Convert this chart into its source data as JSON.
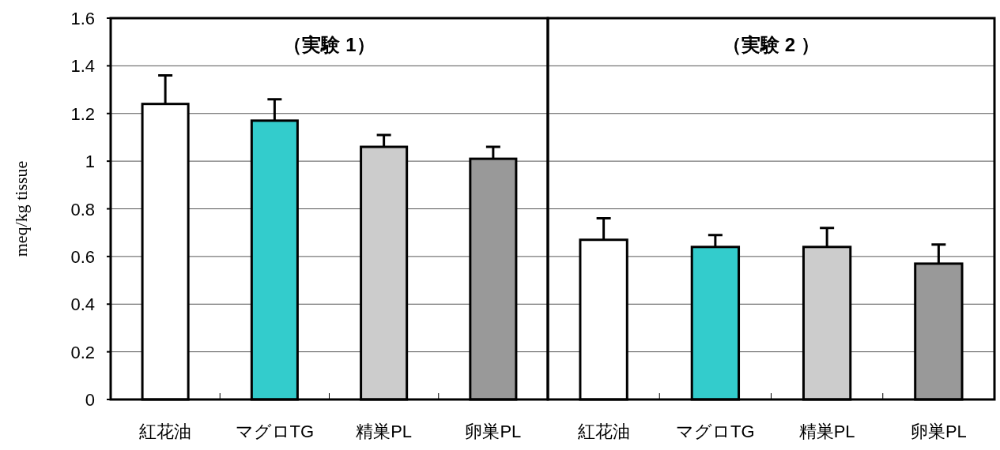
{
  "chart_data": [
    {
      "type": "bar",
      "title": "（実験 1）",
      "ylabel": "meq/kg tissue",
      "categories": [
        "紅花油",
        "マグロTG",
        "精巣PL",
        "卵巣PL"
      ],
      "values": [
        1.24,
        1.17,
        1.06,
        1.01
      ],
      "errors": [
        0.12,
        0.09,
        0.05,
        0.05
      ],
      "colors": [
        "#ffffff",
        "#33cccc",
        "#cccccc",
        "#999999"
      ],
      "ylim": [
        0,
        1.6
      ],
      "yticks": [
        0,
        0.2,
        0.4,
        0.6,
        0.8,
        1,
        1.2,
        1.4,
        1.6
      ],
      "grid": "y"
    },
    {
      "type": "bar",
      "title": "（実験 2 ）",
      "categories": [
        "紅花油",
        "マグロTG",
        "精巣PL",
        "卵巣PL"
      ],
      "values": [
        0.67,
        0.64,
        0.64,
        0.57
      ],
      "errors": [
        0.09,
        0.05,
        0.08,
        0.08
      ],
      "colors": [
        "#ffffff",
        "#33cccc",
        "#cccccc",
        "#999999"
      ],
      "ylim": [
        0,
        1.6
      ],
      "yticks": [
        0,
        0.2,
        0.4,
        0.6,
        0.8,
        1,
        1.2,
        1.4,
        1.6
      ],
      "grid": "y",
      "tick_labels": "x"
    }
  ]
}
